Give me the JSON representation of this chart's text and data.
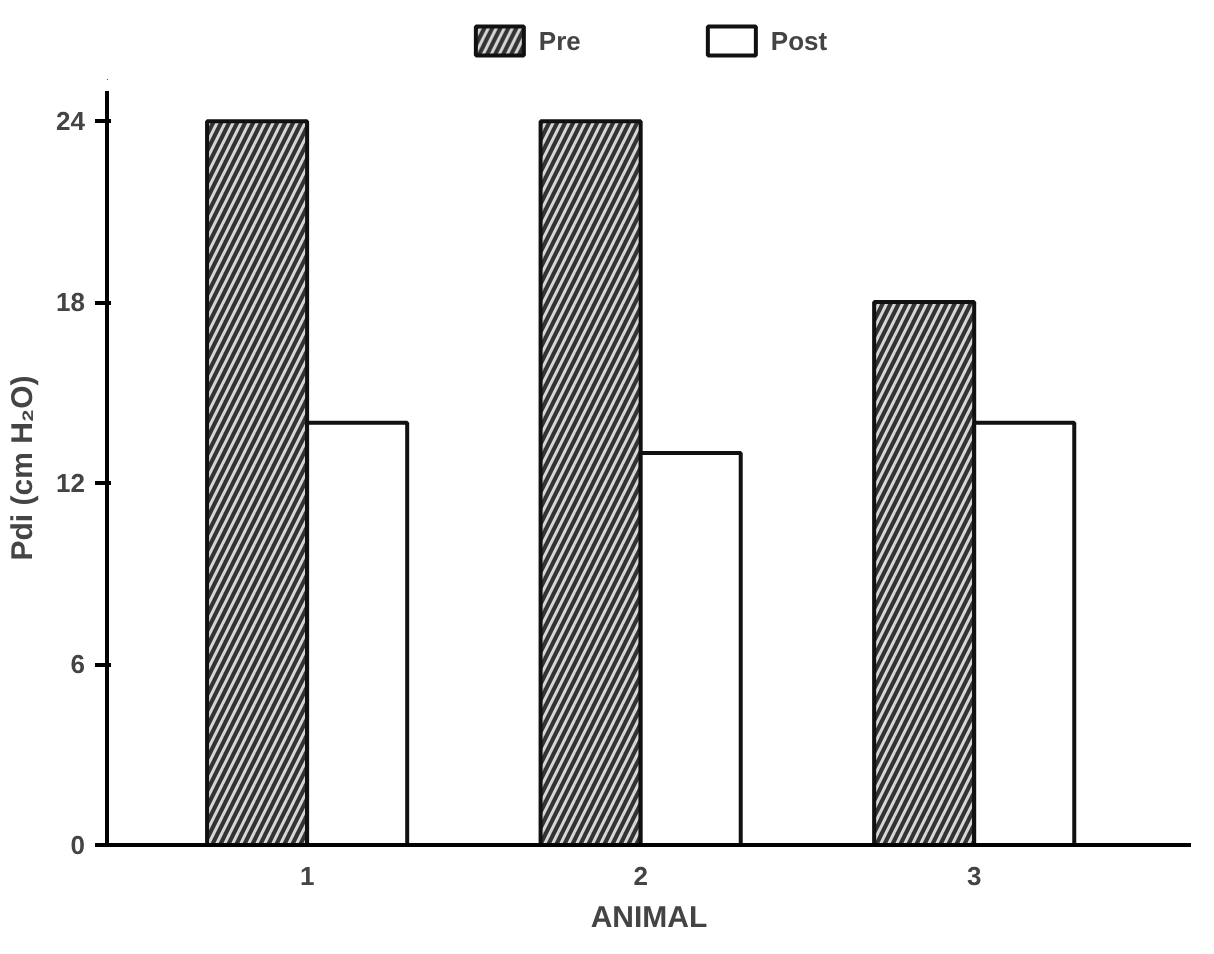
{
  "chart_data": {
    "type": "bar",
    "xlabel": "ANIMAL",
    "ylabel": "Pdi (cm H₂O)",
    "categories": [
      "1",
      "2",
      "3"
    ],
    "series": [
      {
        "name": "Pre",
        "color": "#333333",
        "values": [
          24,
          24,
          18
        ]
      },
      {
        "name": "Post",
        "color": "#ffffff",
        "values": [
          14,
          13,
          14
        ]
      }
    ],
    "ylim": [
      0,
      25
    ],
    "yticks": [
      0,
      6,
      12,
      18,
      24
    ],
    "grid": false,
    "legend": "top"
  }
}
